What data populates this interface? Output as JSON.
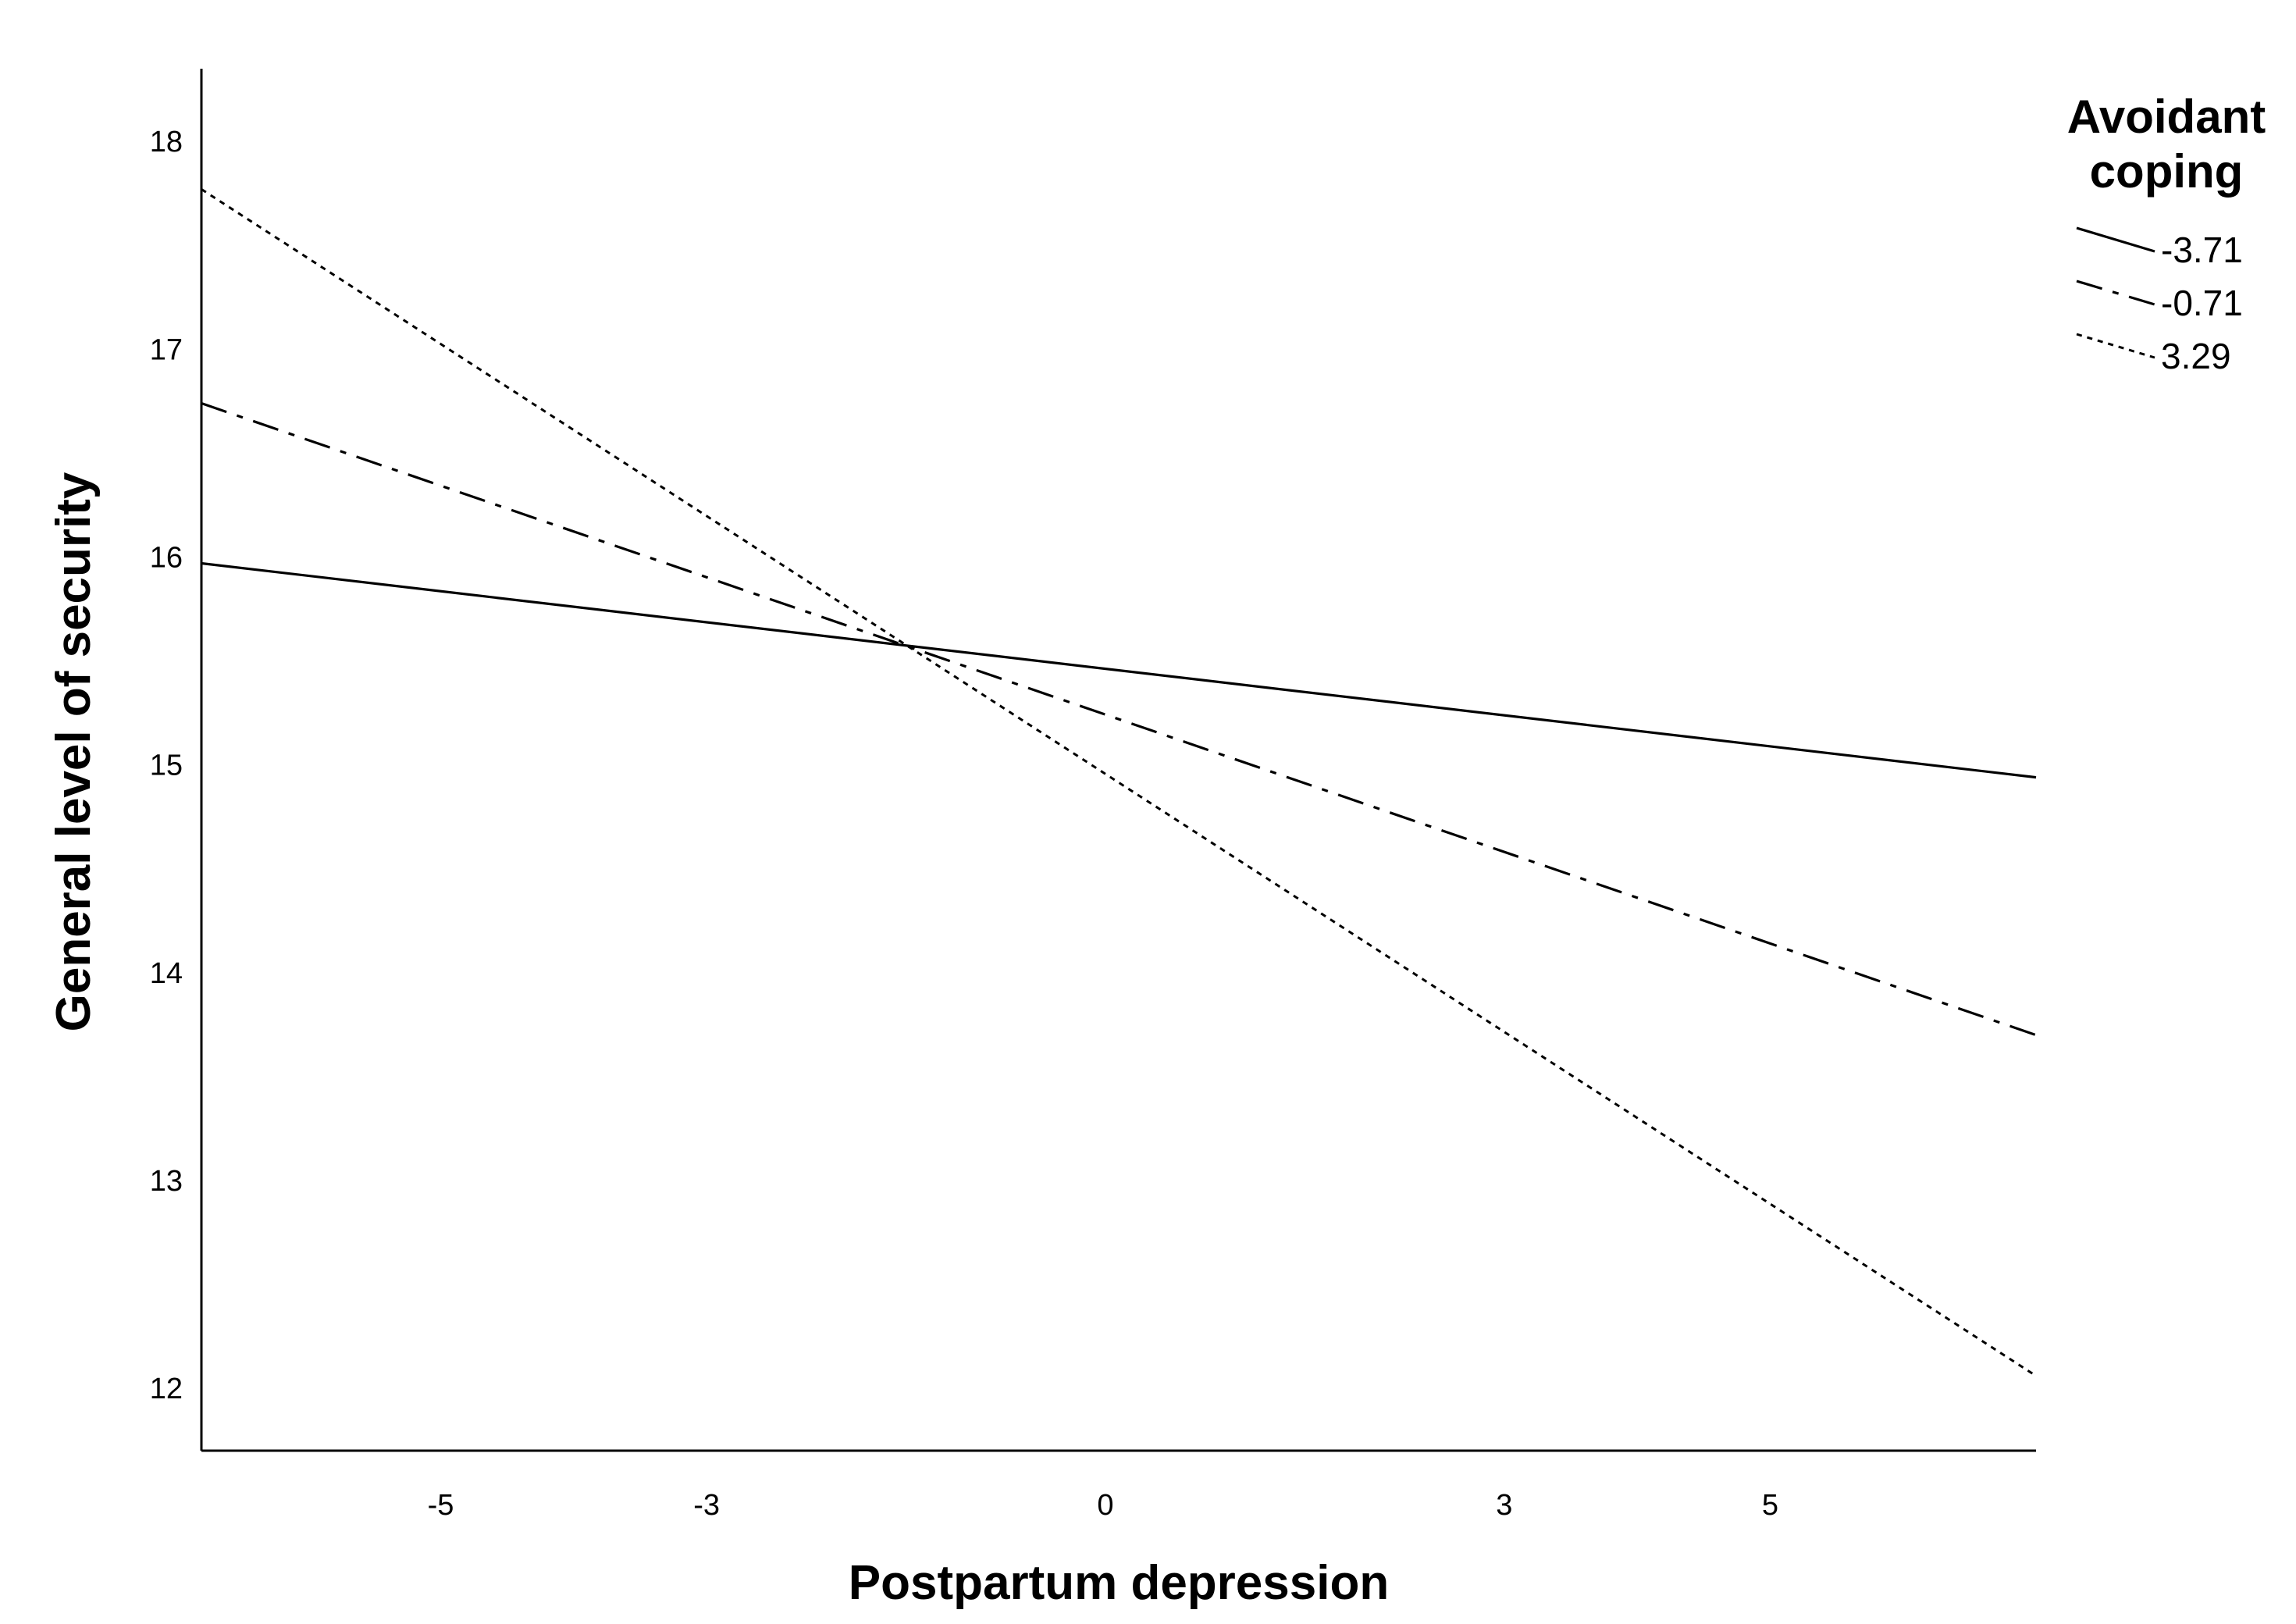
{
  "chart_data": {
    "type": "line",
    "title": "",
    "xlabel": "Postpartum depression",
    "ylabel": "General level of security",
    "xlim": [
      -6.8,
      7.0
    ],
    "ylim": [
      11.7,
      18.35
    ],
    "x_ticks": [
      -5,
      -3,
      0,
      3,
      5
    ],
    "y_ticks": [
      12,
      13,
      14,
      15,
      16,
      17,
      18
    ],
    "grid": false,
    "legend": {
      "title_lines": [
        "Avoidant",
        "coping"
      ],
      "placement": "top-right"
    },
    "series": [
      {
        "name": "-3.71",
        "style": "solid",
        "x": [
          -6.8,
          7.0
        ],
        "y": [
          15.97,
          14.94
        ]
      },
      {
        "name": "-0.71",
        "style": "dashdot",
        "x": [
          -6.8,
          7.0
        ],
        "y": [
          16.74,
          13.7
        ]
      },
      {
        "name": "3.29",
        "style": "dotted",
        "x": [
          -6.8,
          7.0
        ],
        "y": [
          17.77,
          12.06
        ]
      }
    ]
  }
}
